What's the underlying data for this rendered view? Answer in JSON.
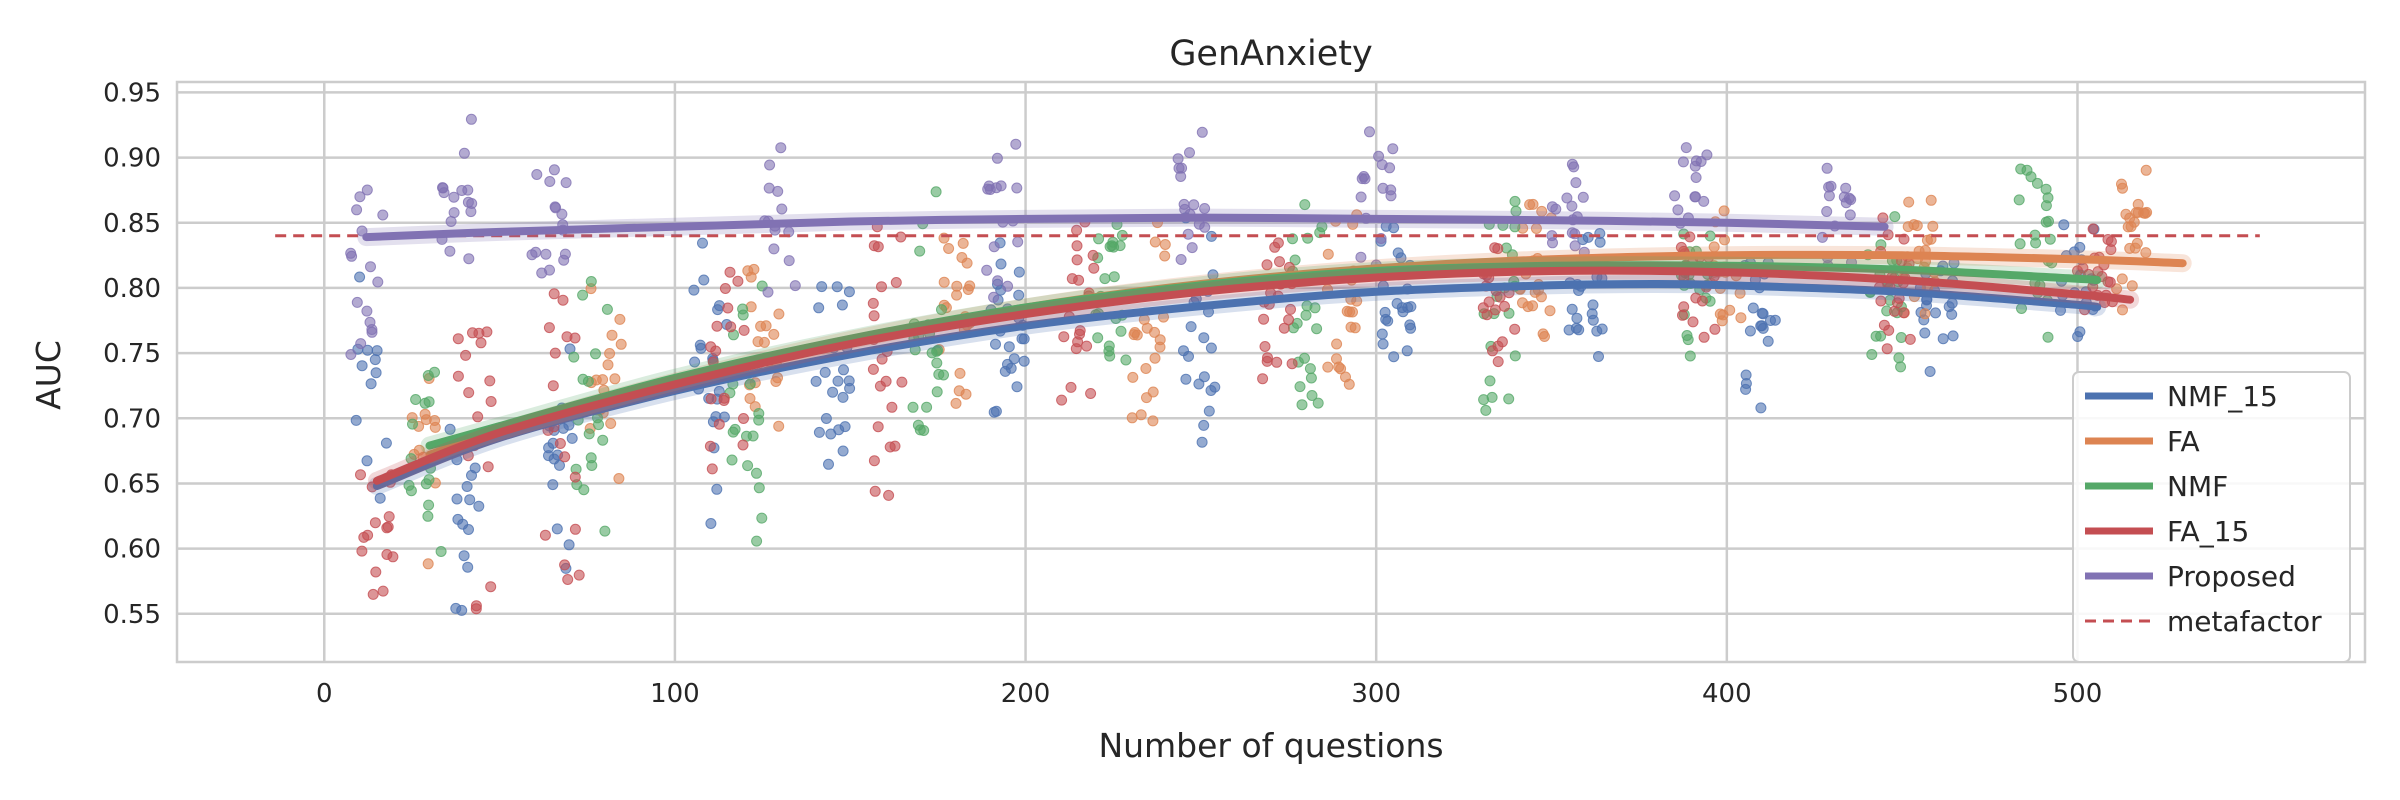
{
  "chart_data": {
    "type": "scatter",
    "title": "GenAnxiety",
    "xlabel": "Number of questions",
    "ylabel": "AUC",
    "xlim": [
      -42,
      582
    ],
    "ylim": [
      0.513,
      0.958
    ],
    "xticks": [
      0,
      100,
      200,
      300,
      400,
      500
    ],
    "yticks": [
      0.55,
      0.6,
      0.65,
      0.7,
      0.75,
      0.8,
      0.85,
      0.9,
      0.95
    ],
    "ytick_labels": [
      "0.55",
      "0.60",
      "0.65",
      "0.70",
      "0.75",
      "0.80",
      "0.85",
      "0.90",
      "0.95"
    ],
    "grid": true,
    "legend_position": "lower-right",
    "series": [
      {
        "name": "NMF_15",
        "color": "#4c72b0",
        "trend": {
          "x": [
            15,
            50,
            100,
            150,
            200,
            250,
            300,
            350,
            380,
            400,
            450,
            500,
            505
          ],
          "y": [
            0.648,
            0.685,
            0.721,
            0.749,
            0.771,
            0.786,
            0.797,
            0.802,
            0.803,
            0.802,
            0.797,
            0.787,
            0.785
          ]
        },
        "clusters": [
          {
            "x": 13,
            "ymin": 0.6,
            "ymax": 0.84,
            "n": 12
          },
          {
            "x": 40,
            "ymin": 0.55,
            "ymax": 0.72,
            "n": 16
          },
          {
            "x": 68,
            "ymin": 0.58,
            "ymax": 0.76,
            "n": 18
          },
          {
            "x": 110,
            "ymin": 0.6,
            "ymax": 0.85,
            "n": 22
          },
          {
            "x": 145,
            "ymin": 0.65,
            "ymax": 0.82,
            "n": 22
          },
          {
            "x": 195,
            "ymin": 0.68,
            "ymax": 0.85,
            "n": 24
          },
          {
            "x": 250,
            "ymin": 0.68,
            "ymax": 0.86,
            "n": 22
          },
          {
            "x": 305,
            "ymin": 0.71,
            "ymax": 0.86,
            "n": 22
          },
          {
            "x": 360,
            "ymin": 0.73,
            "ymax": 0.86,
            "n": 22
          },
          {
            "x": 410,
            "ymin": 0.7,
            "ymax": 0.85,
            "n": 20
          },
          {
            "x": 460,
            "ymin": 0.72,
            "ymax": 0.86,
            "n": 20
          },
          {
            "x": 500,
            "ymin": 0.75,
            "ymax": 0.85,
            "n": 18
          }
        ]
      },
      {
        "name": "FA",
        "color": "#dd8452",
        "trend": {
          "x": [
            30,
            50,
            100,
            150,
            200,
            250,
            300,
            350,
            400,
            450,
            500,
            530
          ],
          "y": [
            0.672,
            0.69,
            0.728,
            0.76,
            0.785,
            0.803,
            0.815,
            0.822,
            0.825,
            0.825,
            0.822,
            0.819
          ]
        },
        "clusters": [
          {
            "x": 30,
            "ymin": 0.55,
            "ymax": 0.76,
            "n": 14
          },
          {
            "x": 80,
            "ymin": 0.6,
            "ymax": 0.82,
            "n": 18
          },
          {
            "x": 125,
            "ymin": 0.64,
            "ymax": 0.84,
            "n": 20
          },
          {
            "x": 180,
            "ymin": 0.7,
            "ymax": 0.86,
            "n": 22
          },
          {
            "x": 235,
            "ymin": 0.69,
            "ymax": 0.86,
            "n": 22
          },
          {
            "x": 290,
            "ymin": 0.72,
            "ymax": 0.87,
            "n": 22
          },
          {
            "x": 345,
            "ymin": 0.74,
            "ymax": 0.88,
            "n": 22
          },
          {
            "x": 400,
            "ymin": 0.75,
            "ymax": 0.87,
            "n": 20
          },
          {
            "x": 455,
            "ymin": 0.76,
            "ymax": 0.87,
            "n": 22
          },
          {
            "x": 515,
            "ymin": 0.78,
            "ymax": 0.93,
            "n": 22
          }
        ]
      },
      {
        "name": "NMF",
        "color": "#55a868",
        "trend": {
          "x": [
            30,
            50,
            100,
            150,
            200,
            250,
            300,
            350,
            400,
            450,
            500,
            505
          ],
          "y": [
            0.679,
            0.694,
            0.731,
            0.761,
            0.785,
            0.802,
            0.813,
            0.817,
            0.817,
            0.814,
            0.807,
            0.806
          ]
        },
        "clusters": [
          {
            "x": 29,
            "ymin": 0.57,
            "ymax": 0.75,
            "n": 16
          },
          {
            "x": 76,
            "ymin": 0.59,
            "ymax": 0.82,
            "n": 18
          },
          {
            "x": 120,
            "ymin": 0.59,
            "ymax": 0.82,
            "n": 20
          },
          {
            "x": 172,
            "ymin": 0.67,
            "ymax": 0.88,
            "n": 22
          },
          {
            "x": 225,
            "ymin": 0.7,
            "ymax": 0.86,
            "n": 22
          },
          {
            "x": 280,
            "ymin": 0.7,
            "ymax": 0.87,
            "n": 22
          },
          {
            "x": 335,
            "ymin": 0.7,
            "ymax": 0.88,
            "n": 22
          },
          {
            "x": 392,
            "ymin": 0.74,
            "ymax": 0.86,
            "n": 20
          },
          {
            "x": 445,
            "ymin": 0.73,
            "ymax": 0.87,
            "n": 22
          },
          {
            "x": 488,
            "ymin": 0.75,
            "ymax": 0.91,
            "n": 22
          }
        ]
      },
      {
        "name": "FA_15",
        "color": "#c44e52",
        "trend": {
          "x": [
            15,
            50,
            100,
            150,
            200,
            250,
            300,
            350,
            400,
            450,
            500,
            515
          ],
          "y": [
            0.652,
            0.689,
            0.726,
            0.757,
            0.78,
            0.797,
            0.808,
            0.813,
            0.812,
            0.806,
            0.795,
            0.791
          ]
        },
        "clusters": [
          {
            "x": 15,
            "ymin": 0.54,
            "ymax": 0.7,
            "n": 16
          },
          {
            "x": 43,
            "ymin": 0.53,
            "ymax": 0.8,
            "n": 18
          },
          {
            "x": 68,
            "ymin": 0.56,
            "ymax": 0.8,
            "n": 18
          },
          {
            "x": 115,
            "ymin": 0.66,
            "ymax": 0.85,
            "n": 20
          },
          {
            "x": 160,
            "ymin": 0.63,
            "ymax": 0.87,
            "n": 22
          },
          {
            "x": 215,
            "ymin": 0.7,
            "ymax": 0.86,
            "n": 22
          },
          {
            "x": 272,
            "ymin": 0.72,
            "ymax": 0.85,
            "n": 22
          },
          {
            "x": 335,
            "ymin": 0.73,
            "ymax": 0.84,
            "n": 20
          },
          {
            "x": 392,
            "ymin": 0.75,
            "ymax": 0.85,
            "n": 20
          },
          {
            "x": 448,
            "ymin": 0.75,
            "ymax": 0.86,
            "n": 20
          },
          {
            "x": 505,
            "ymin": 0.76,
            "ymax": 0.86,
            "n": 20
          }
        ]
      },
      {
        "name": "Proposed",
        "color": "#8172b3",
        "trend": {
          "x": [
            12,
            50,
            100,
            150,
            200,
            250,
            300,
            350,
            400,
            445
          ],
          "y": [
            0.839,
            0.843,
            0.847,
            0.851,
            0.853,
            0.854,
            0.853,
            0.852,
            0.85,
            0.847
          ]
        },
        "clusters": [
          {
            "x": 12,
            "ymin": 0.73,
            "ymax": 0.88,
            "n": 16
          },
          {
            "x": 38,
            "ymin": 0.81,
            "ymax": 0.94,
            "n": 16
          },
          {
            "x": 64,
            "ymin": 0.78,
            "ymax": 0.92,
            "n": 16
          },
          {
            "x": 130,
            "ymin": 0.79,
            "ymax": 0.91,
            "n": 14
          },
          {
            "x": 193,
            "ymin": 0.79,
            "ymax": 0.92,
            "n": 16
          },
          {
            "x": 248,
            "ymin": 0.8,
            "ymax": 0.93,
            "n": 16
          },
          {
            "x": 300,
            "ymin": 0.81,
            "ymax": 0.92,
            "n": 16
          },
          {
            "x": 355,
            "ymin": 0.82,
            "ymax": 0.9,
            "n": 16
          },
          {
            "x": 390,
            "ymin": 0.82,
            "ymax": 0.92,
            "n": 14
          },
          {
            "x": 432,
            "ymin": 0.81,
            "ymax": 0.9,
            "n": 16
          }
        ]
      }
    ],
    "reference_line": {
      "name": "metafactor",
      "color": "#c44e52",
      "y": 0.84,
      "x": [
        -14,
        552
      ],
      "style": "dashed"
    }
  }
}
